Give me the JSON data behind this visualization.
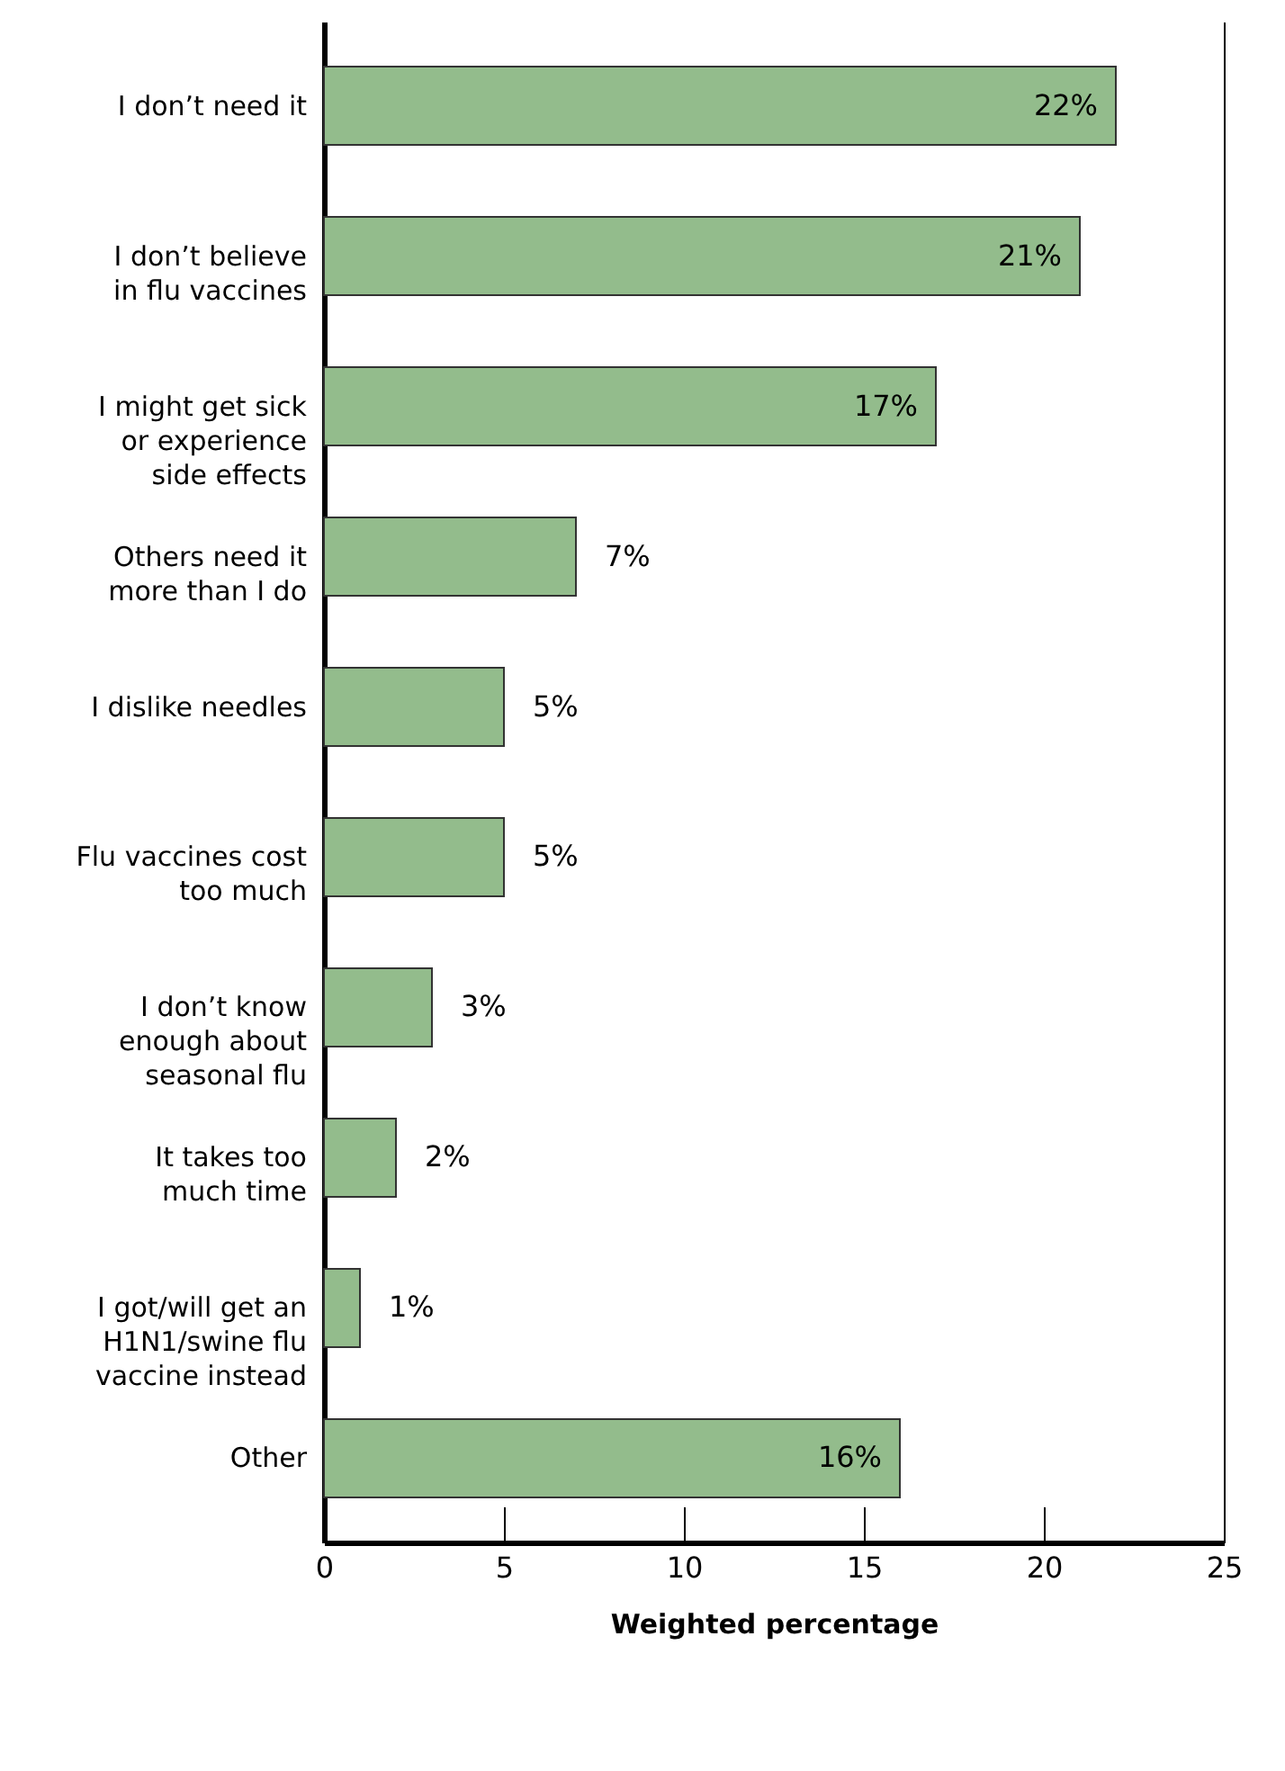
{
  "chart_data": {
    "type": "bar",
    "orientation": "horizontal",
    "xlabel": "Weighted percentage",
    "categories": [
      "I don’t need it",
      "I don’t believe\nin flu vaccines",
      "I might get sick\nor experience\nside effects",
      "Others need it\nmore than I do",
      "I dislike needles",
      "Flu vaccines cost\ntoo much",
      "I don’t know\nenough about\nseasonal flu",
      "It takes too\nmuch time",
      "I got/will get an\nH1N1/swine flu\nvaccine instead",
      "Other"
    ],
    "values": [
      22,
      21,
      17,
      7,
      5,
      5,
      3,
      2,
      1,
      16
    ],
    "value_labels": [
      "22%",
      "21%",
      "17%",
      "7%",
      "5%",
      "5%",
      "3%",
      "2%",
      "1%",
      "16%"
    ],
    "color": "#93bc8c",
    "xlim": [
      0,
      25
    ],
    "xticks": [
      0,
      5,
      10,
      15,
      20,
      25
    ],
    "grid": false
  }
}
